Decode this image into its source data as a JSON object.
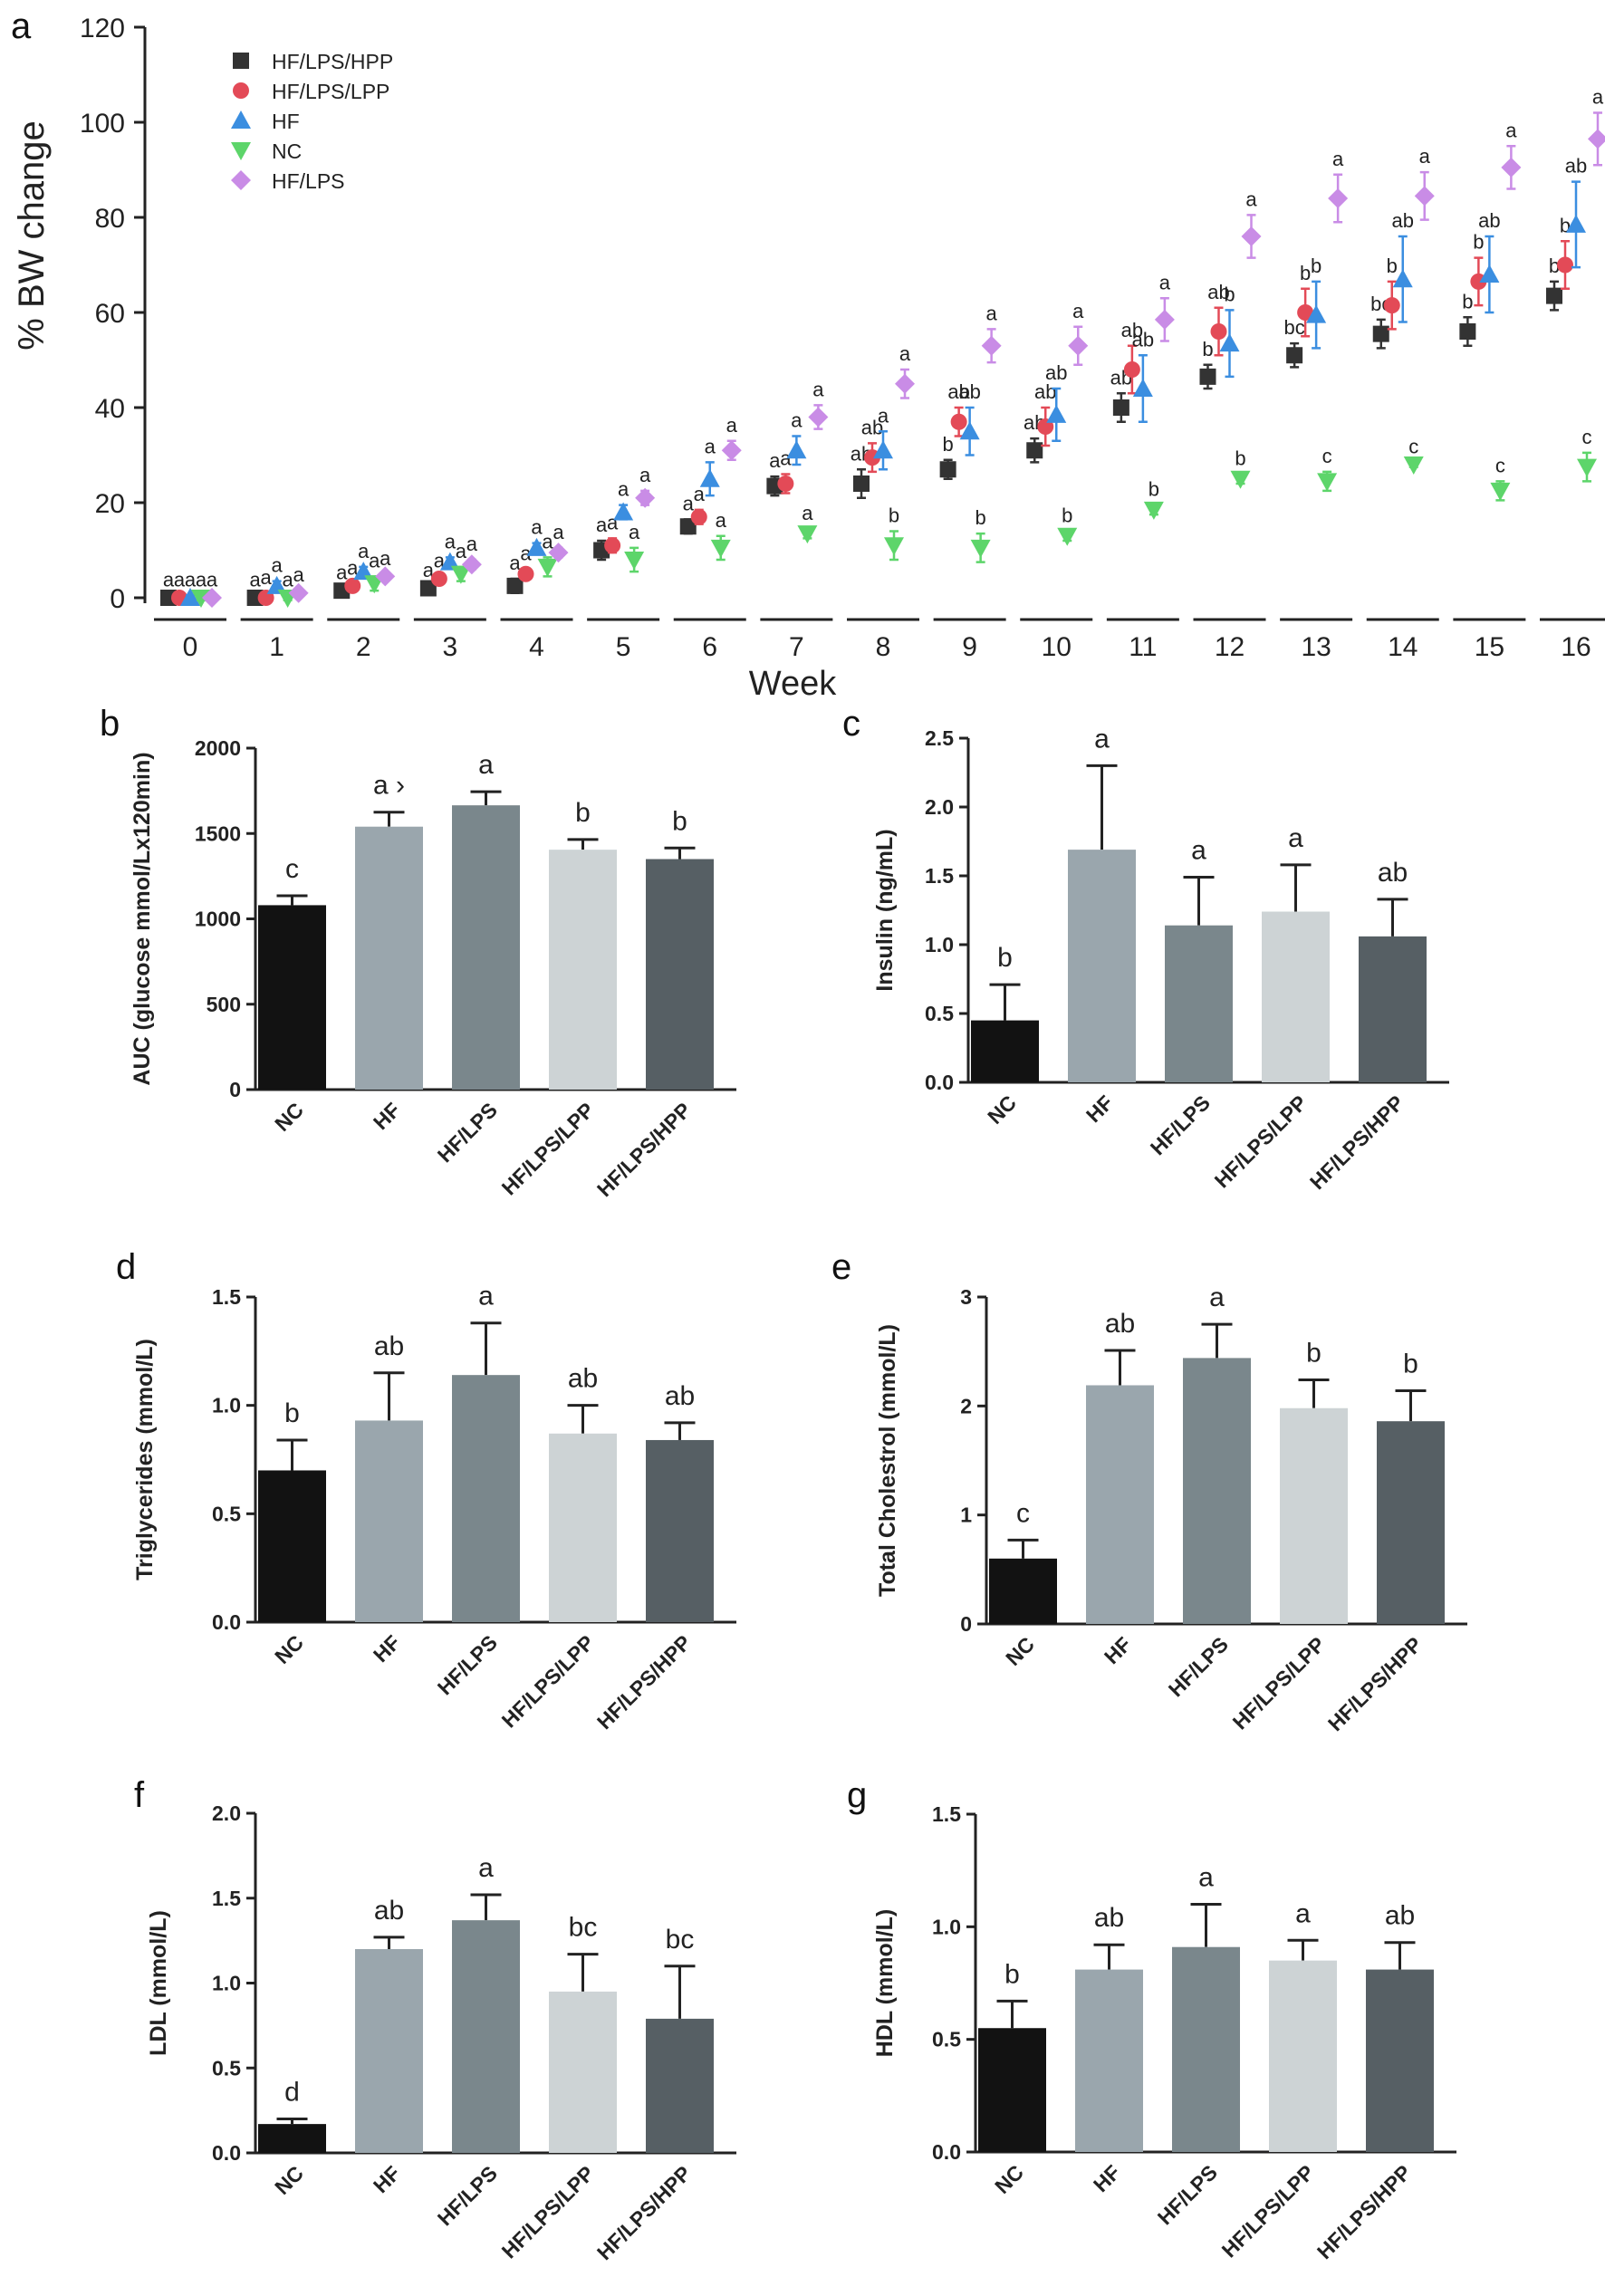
{
  "chart_data": [
    {
      "panel": "a",
      "type": "scatter",
      "ylabel": "% BW change",
      "xlabel": "Week",
      "ylim": [
        0,
        120
      ],
      "yticks": [
        0,
        20,
        40,
        60,
        80,
        100,
        120
      ],
      "x": [
        0,
        1,
        2,
        3,
        4,
        5,
        6,
        7,
        8,
        9,
        10,
        11,
        12,
        13,
        14,
        15,
        16
      ],
      "x_tick_labels": [
        "0",
        "1",
        "2",
        "3",
        "4",
        "5",
        "6",
        "7",
        "8",
        "9",
        "10",
        "11",
        "12",
        "13",
        "14",
        "15",
        "16"
      ],
      "legend_position": "top-left",
      "series": [
        {
          "name": "HF/LPS/HPP",
          "marker": "square",
          "color": "#333333",
          "values": [
            0,
            0,
            1.5,
            2,
            2.5,
            10,
            15,
            23.5,
            24,
            27,
            31,
            40,
            46.5,
            51,
            55.5,
            56,
            63.5
          ],
          "errors": [
            0.5,
            0.5,
            0.5,
            0.5,
            1.5,
            2,
            1.5,
            2,
            3,
            2,
            2.5,
            3,
            2.5,
            2.5,
            3,
            3,
            3
          ],
          "labels": [
            "a",
            "a",
            "a",
            "a",
            "a",
            "a",
            "a",
            "a",
            "ab",
            "b",
            "ab",
            "ab",
            "b",
            "bc",
            "bc",
            "b",
            "b"
          ]
        },
        {
          "name": "HF/LPS/LPP",
          "marker": "circle",
          "color": "#e34a57",
          "values": [
            0,
            0,
            2.5,
            4,
            5,
            11,
            17,
            24,
            29.5,
            37,
            36,
            48,
            56,
            60,
            61.5,
            66.5,
            70
          ],
          "errors": [
            0.5,
            1,
            0.5,
            0.5,
            1,
            1.5,
            1.5,
            2,
            3,
            3,
            4,
            5,
            5,
            5,
            5,
            5,
            5
          ],
          "labels": [
            "a",
            "a",
            "a",
            "a",
            "a",
            "a",
            "a",
            "a",
            "ab",
            "ab",
            "ab",
            "ab",
            "ab",
            "b",
            "b",
            "b",
            "b"
          ]
        },
        {
          "name": "HF",
          "marker": "triangle-up",
          "color": "#3b8ee0",
          "values": [
            0,
            2.5,
            5.5,
            7.5,
            10.5,
            18,
            25,
            31,
            31,
            35,
            38.5,
            44,
            53.5,
            59.5,
            67,
            68,
            78.5
          ],
          "errors": [
            0.5,
            1,
            1,
            1,
            1,
            1.5,
            3.5,
            3,
            4,
            5,
            5.5,
            7,
            7,
            7,
            9,
            8,
            9
          ],
          "labels": [
            "a",
            "a",
            "a",
            "a",
            "a",
            "a",
            "a",
            "a",
            "a",
            "ab",
            "ab",
            "ab",
            "b",
            "b",
            "ab",
            "ab",
            "ab"
          ]
        },
        {
          "name": "NC",
          "marker": "triangle-down",
          "color": "#5dd56a",
          "values": [
            0,
            0,
            3,
            5,
            6.5,
            8,
            10.5,
            13.5,
            11,
            10.5,
            13,
            18.5,
            25,
            24.5,
            28,
            22.5,
            27.5
          ],
          "errors": [
            0.5,
            0.5,
            1.5,
            1.5,
            2,
            2.5,
            2.5,
            1,
            3,
            3,
            1,
            1,
            1,
            2,
            0.5,
            2,
            3
          ],
          "labels": [
            "a",
            "a",
            "a",
            "a",
            "a",
            "a",
            "a",
            "a",
            "b",
            "b",
            "b",
            "b",
            "b",
            "c",
            "c",
            "c",
            "c"
          ]
        },
        {
          "name": "HF/LPS",
          "marker": "diamond",
          "color": "#c98ce6",
          "values": [
            0,
            1,
            4.5,
            7,
            9.5,
            21,
            31,
            38,
            45,
            53,
            53,
            58.5,
            76,
            84,
            84.5,
            90.5,
            96.5
          ],
          "errors": [
            0.5,
            0.5,
            0.5,
            1,
            1,
            1.5,
            2,
            2.5,
            3,
            3.5,
            4,
            4.5,
            4.5,
            5,
            5,
            4.5,
            5.5
          ],
          "labels": [
            "a",
            "a",
            "a",
            "a",
            "a",
            "a",
            "a",
            "a",
            "a",
            "a",
            "a",
            "a",
            "a",
            "a",
            "a",
            "a",
            "a"
          ]
        }
      ]
    },
    {
      "panel": "b",
      "type": "bar",
      "ylabel": "AUC (glucose mmol/Lx120min)",
      "ylim": [
        0,
        2000
      ],
      "yticks": [
        0,
        500,
        1000,
        1500,
        2000
      ],
      "categories": [
        "NC",
        "HF",
        "HF/LPS",
        "HF/LPS/LPP",
        "HF/LPS/HPP"
      ],
      "values": [
        1080,
        1540,
        1665,
        1405,
        1350
      ],
      "errors": [
        55,
        85,
        80,
        60,
        65
      ],
      "labels": [
        "c",
        "a ›",
        "a",
        "b",
        "b"
      ]
    },
    {
      "panel": "c",
      "type": "bar",
      "ylabel": "Insulin (ng/mL)",
      "ylim": [
        0,
        2.5
      ],
      "yticks": [
        0.0,
        0.5,
        1.0,
        1.5,
        2.0,
        2.5
      ],
      "tick_decimals": 1,
      "categories": [
        "NC",
        "HF",
        "HF/LPS",
        "HF/LPS/LPP",
        "HF/LPS/HPP"
      ],
      "values": [
        0.45,
        1.69,
        1.14,
        1.24,
        1.06
      ],
      "errors": [
        0.26,
        0.61,
        0.35,
        0.34,
        0.27
      ],
      "labels": [
        "b",
        "a",
        "a",
        "a",
        "ab"
      ]
    },
    {
      "panel": "d",
      "type": "bar",
      "ylabel": "Triglycerides (mmol/L)",
      "ylim": [
        0,
        1.5
      ],
      "yticks": [
        0.0,
        0.5,
        1.0,
        1.5
      ],
      "tick_decimals": 1,
      "categories": [
        "NC",
        "HF",
        "HF/LPS",
        "HF/LPS/LPP",
        "HF/LPS/HPP"
      ],
      "values": [
        0.7,
        0.93,
        1.14,
        0.87,
        0.84
      ],
      "errors": [
        0.14,
        0.22,
        0.24,
        0.13,
        0.08
      ],
      "labels": [
        "b",
        "ab",
        "a",
        "ab",
        "ab"
      ]
    },
    {
      "panel": "e",
      "type": "bar",
      "ylabel": "Total Cholestrol (mmol/L)",
      "ylim": [
        0,
        3
      ],
      "yticks": [
        0,
        1,
        2,
        3
      ],
      "categories": [
        "NC",
        "HF",
        "HF/LPS",
        "HF/LPS/LPP",
        "HF/LPS/HPP"
      ],
      "values": [
        0.6,
        2.19,
        2.44,
        1.98,
        1.86
      ],
      "errors": [
        0.17,
        0.32,
        0.31,
        0.26,
        0.28
      ],
      "labels": [
        "c",
        "ab",
        "a",
        "b",
        "b"
      ]
    },
    {
      "panel": "f",
      "type": "bar",
      "ylabel": "LDL (mmol/L)",
      "ylim": [
        0,
        2.0
      ],
      "yticks": [
        0.0,
        0.5,
        1.0,
        1.5,
        2.0
      ],
      "tick_decimals": 1,
      "categories": [
        "NC",
        "HF",
        "HF/LPS",
        "HF/LPS/LPP",
        "HF/LPS/HPP"
      ],
      "values": [
        0.17,
        1.2,
        1.37,
        0.95,
        0.79
      ],
      "errors": [
        0.03,
        0.07,
        0.15,
        0.22,
        0.31
      ],
      "labels": [
        "d",
        "ab",
        "a",
        "bc",
        "bc"
      ]
    },
    {
      "panel": "g",
      "type": "bar",
      "ylabel": "HDL (mmol/L)",
      "ylim": [
        0,
        1.5
      ],
      "yticks": [
        0.0,
        0.5,
        1.0,
        1.5
      ],
      "tick_decimals": 1,
      "categories": [
        "NC",
        "HF",
        "HF/LPS",
        "HF/LPS/LPP",
        "HF/LPS/HPP"
      ],
      "values": [
        0.55,
        0.81,
        0.91,
        0.85,
        0.81
      ],
      "errors": [
        0.12,
        0.11,
        0.19,
        0.09,
        0.12
      ],
      "labels": [
        "b",
        "ab",
        "a",
        "a",
        "ab"
      ]
    }
  ],
  "bar_colors": [
    "#121212",
    "#9aa6ad",
    "#7a878c",
    "#cdd3d5",
    "#565f64"
  ]
}
